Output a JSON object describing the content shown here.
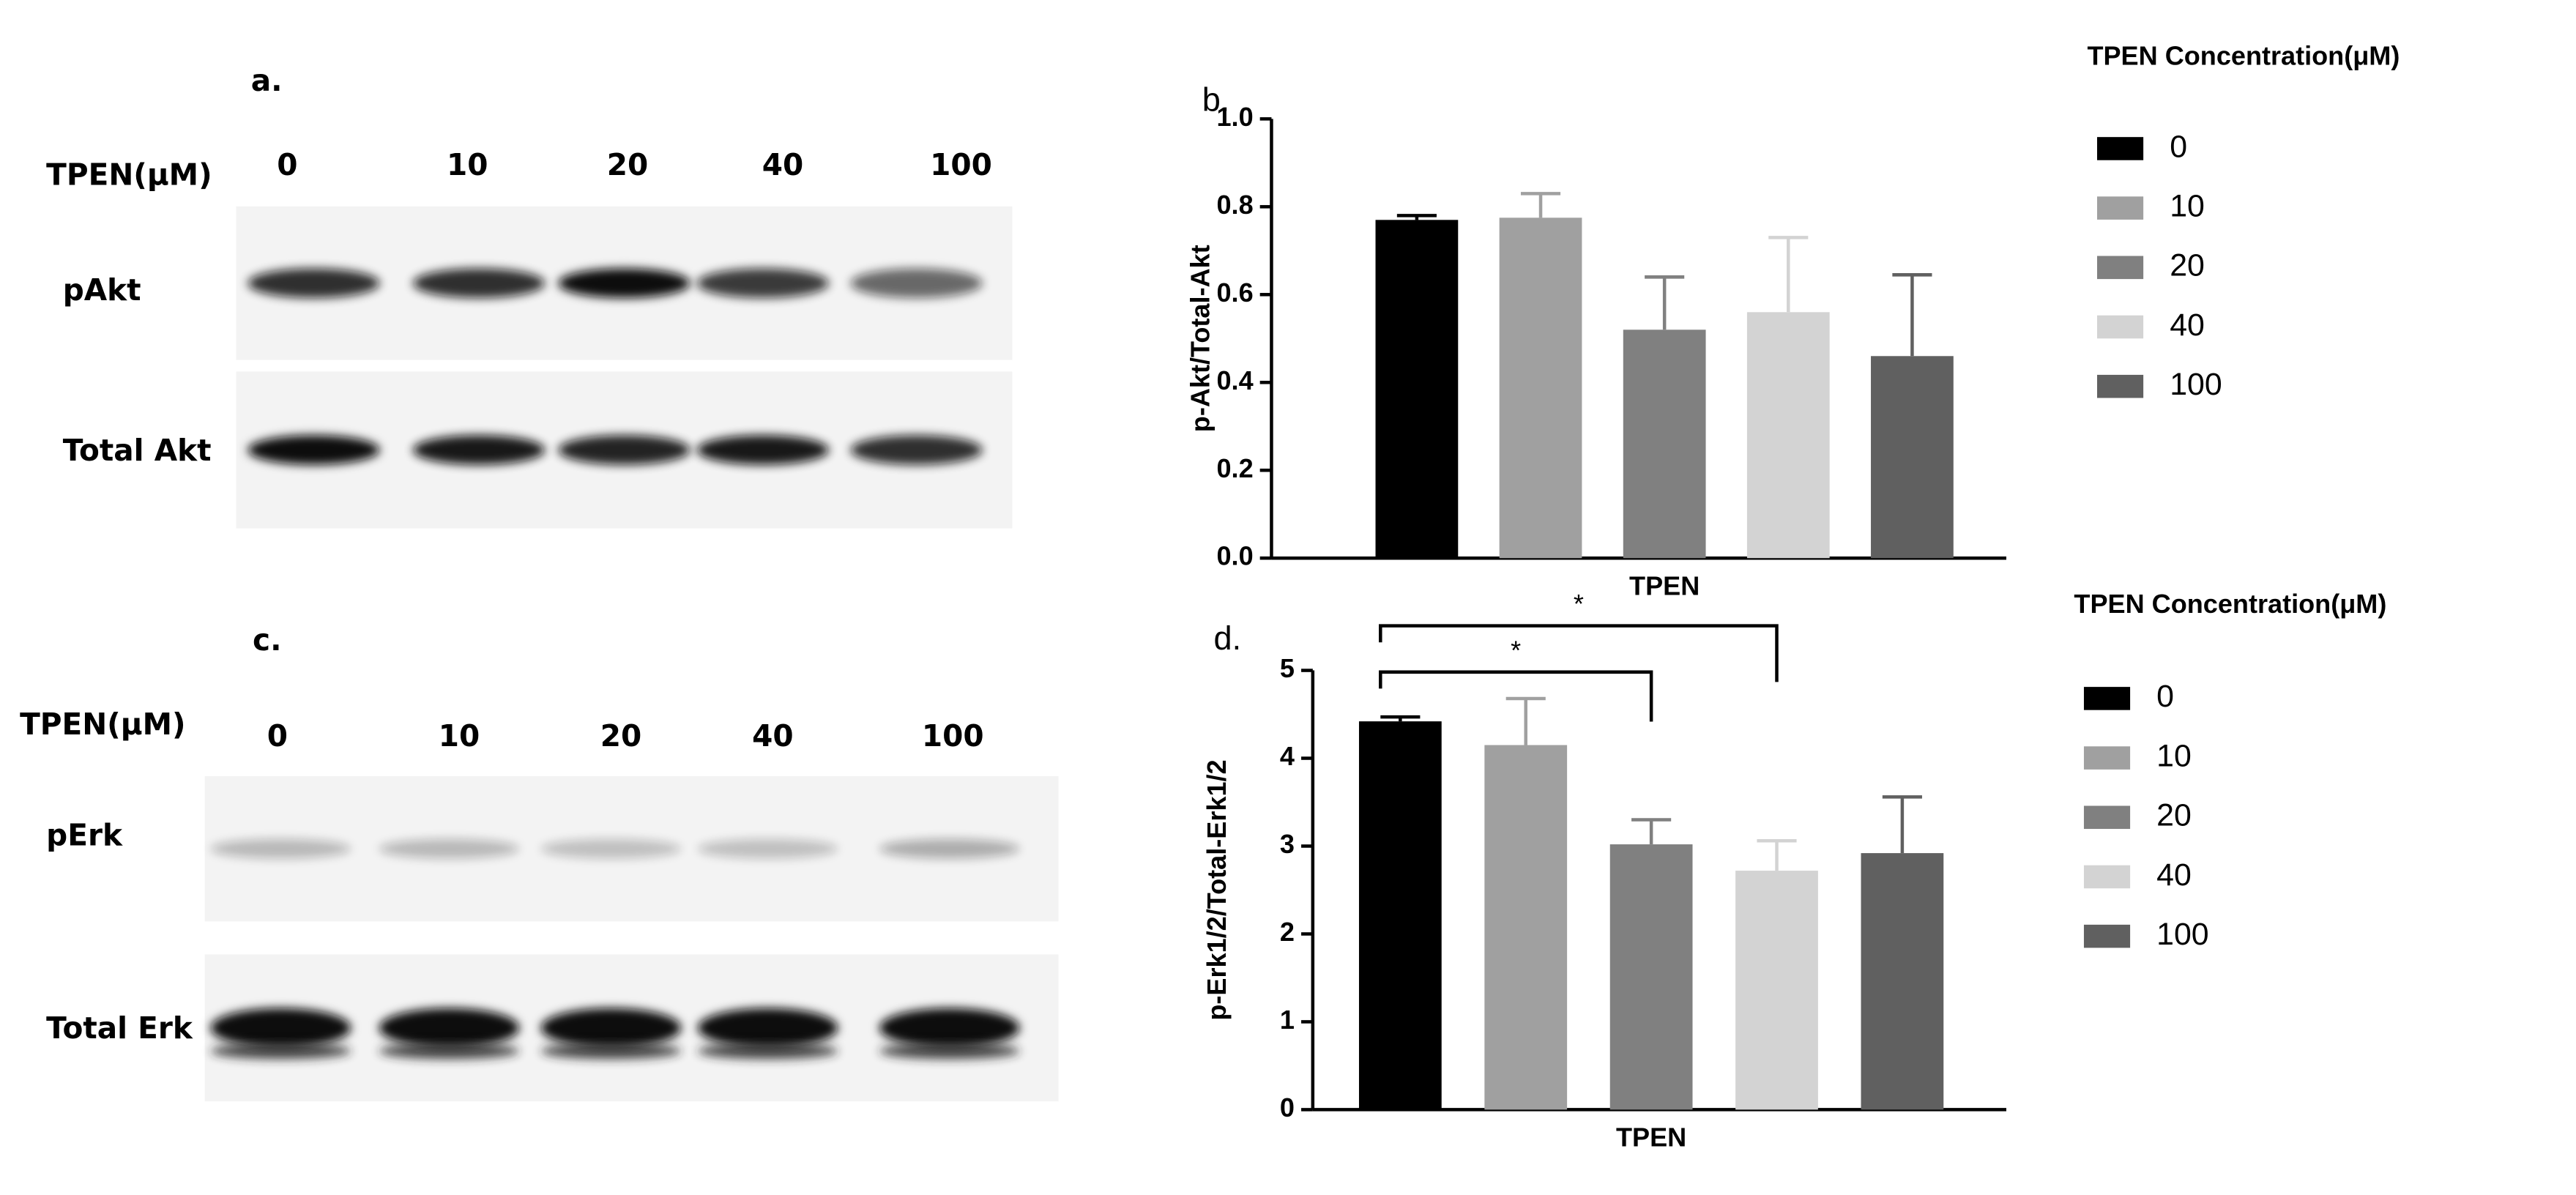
{
  "blots": [
    {
      "label": "a.",
      "unit_label": "TPEN(μM)",
      "lanes": [
        "0",
        "10",
        "20",
        "40",
        "100"
      ],
      "rows": [
        "pAkt",
        "Total Akt"
      ]
    },
    {
      "label": "c.",
      "unit_label": "TPEN(μM)",
      "lanes": [
        "0",
        "10",
        "20",
        "40",
        "100"
      ],
      "rows": [
        "pErk",
        "Total Erk"
      ]
    }
  ],
  "chart_data": [
    {
      "type": "bar",
      "panel_label": "b.",
      "x_label": "TPEN",
      "y_label": "p-Akt/Total-Akt",
      "legend_title": "TPEN Concentration(μM)",
      "categories": [
        "0",
        "10",
        "20",
        "40",
        "100"
      ],
      "values": [
        0.77,
        0.775,
        0.52,
        0.56,
        0.46
      ],
      "errors": [
        0.01,
        0.055,
        0.12,
        0.17,
        0.185
      ],
      "colors": [
        "#000000",
        "#a0a0a0",
        "#808080",
        "#d3d3d3",
        "#606060"
      ],
      "ylim": [
        0,
        1
      ],
      "yticks": [
        {
          "value": 0,
          "label": "0.0"
        },
        {
          "value": 0.2,
          "label": "0.2"
        },
        {
          "value": 0.4,
          "label": "0.4"
        },
        {
          "value": 0.6,
          "label": "0.6"
        },
        {
          "value": 0.8,
          "label": "0.8"
        },
        {
          "value": 1,
          "label": "1.0"
        }
      ],
      "grid": false
    },
    {
      "type": "bar",
      "panel_label": "d.",
      "x_label": "TPEN",
      "y_label": "p-Erk1/2/Total-Erk1/2",
      "legend_title": "TPEN Concentration(μM)",
      "categories": [
        "0",
        "10",
        "20",
        "40",
        "100"
      ],
      "values": [
        4.42,
        4.15,
        3.02,
        2.72,
        2.92
      ],
      "errors": [
        0.05,
        0.53,
        0.28,
        0.34,
        0.64
      ],
      "colors": [
        "#000000",
        "#a0a0a0",
        "#808080",
        "#d3d3d3",
        "#606060"
      ],
      "ylim": [
        0,
        5
      ],
      "yticks": [
        0,
        1,
        2,
        3,
        4,
        5
      ],
      "grid": false,
      "comparisons": [
        {
          "label": "*",
          "groups": [
            "0",
            "20"
          ]
        },
        {
          "label": "*",
          "groups": [
            "0",
            "40"
          ]
        }
      ]
    }
  ]
}
